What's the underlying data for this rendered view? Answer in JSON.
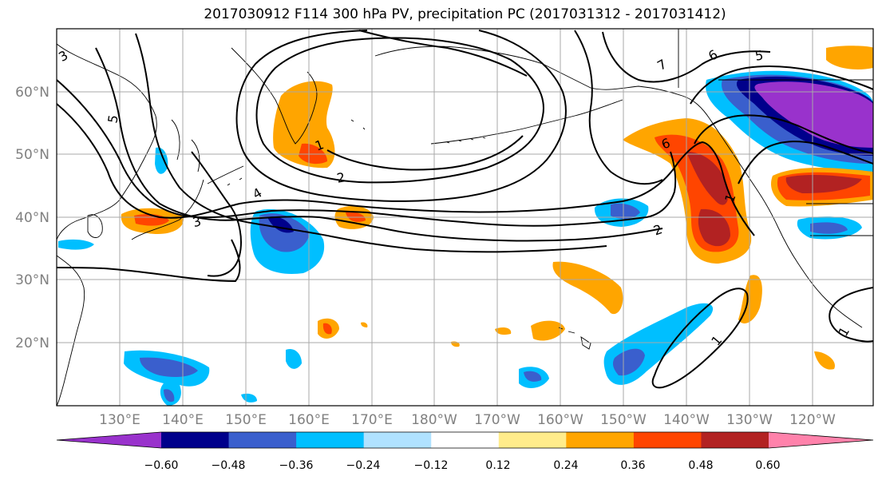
{
  "title": "2017030912 F114 300 hPa PV, precipitation PC (2017031312 - 2017031412)",
  "latitude_labels": [
    "60°N",
    "50°N",
    "40°N",
    "30°N",
    "20°N"
  ],
  "longitude_labels": [
    "130°E",
    "140°E",
    "150°E",
    "160°E",
    "170°E",
    "180°W",
    "170°W",
    "160°W",
    "150°W",
    "140°W",
    "130°W",
    "120°W"
  ],
  "colorbar": {
    "tick_labels": [
      "−0.60",
      "−0.48",
      "−0.36",
      "−0.24",
      "−0.12",
      "0.12",
      "0.24",
      "0.36",
      "0.48",
      "0.60"
    ],
    "colors": [
      "#9932CC",
      "#00008B",
      "#3A5FCD",
      "#00BFFF",
      "#B0E2FF",
      "#FFFFFF",
      "#FFEC8B",
      "#FFA500",
      "#FF4500",
      "#B22222",
      "#FF82AB"
    ]
  },
  "contour_labels": [
    "3",
    "5",
    "1",
    "2",
    "4",
    "3",
    "6",
    "7",
    "5",
    "6",
    "1",
    "2",
    "1",
    "1"
  ]
}
